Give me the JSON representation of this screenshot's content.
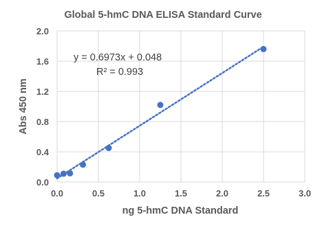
{
  "chart_data": {
    "type": "scatter",
    "title": "Global 5-hmC DNA ELISA Standard Curve",
    "xlabel": "ng 5-hmC DNA Standard",
    "ylabel": "Abs 450 nm",
    "xlim": [
      0,
      3.0
    ],
    "ylim": [
      0,
      2.0
    ],
    "x_ticks": [
      "0.0",
      "0.5",
      "1.0",
      "1.5",
      "2.0",
      "2.5",
      "3.0"
    ],
    "y_ticks": [
      "0.0",
      "0.4",
      "0.8",
      "1.2",
      "1.6",
      "2.0"
    ],
    "grid": true,
    "legend": "none",
    "series": [
      {
        "x": [
          0.0,
          0.078,
          0.156,
          0.313,
          0.625,
          1.25,
          2.5
        ],
        "y": [
          0.09,
          0.11,
          0.115,
          0.23,
          0.45,
          1.02,
          1.76
        ]
      }
    ],
    "trendline": {
      "type": "linear",
      "slope": 0.6973,
      "intercept": 0.048,
      "style": "dotted",
      "equation_label": "y = 0.6973x + 0.048",
      "r2_label": "R² = 0.993"
    },
    "colors": {
      "marker": "#4472C4",
      "trendline": "#4472C4",
      "grid": "#D9D9D9",
      "text": "#595959"
    }
  }
}
